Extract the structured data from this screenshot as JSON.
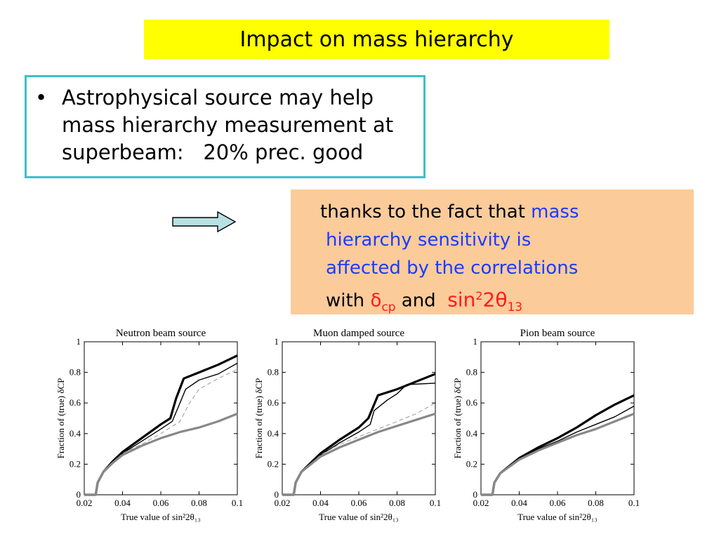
{
  "slide": {
    "title": "Impact on mass hierarchy",
    "bullet": {
      "symbol": "•",
      "line1": "Astrophysical source may help",
      "line2": "mass hierarchy measurement at",
      "line3": "superbeam:   20% prec. good"
    },
    "arrow_icon": "right-arrow-icon",
    "note": {
      "line1_plain": "thanks to the fact that ",
      "line1_highlight": "mass",
      "line2": "hierarchy sensitivity is",
      "line3": "affected by the correlations",
      "line4_with": "with ",
      "delta_symbol": "δ",
      "delta_sub": "cp",
      "and": " and  ",
      "sin_text": "sin",
      "sin_sup": "2",
      "two_theta": "2θ",
      "theta_sub": "13"
    },
    "colors": {
      "title_bg": "#ffff00",
      "box_border": "#3cc0c8",
      "note_bg": "#fccb9a",
      "highlight": "#1a3cff",
      "red": "#ff1a1a"
    }
  },
  "chart_data": [
    {
      "type": "line",
      "title": "Neutron beam source",
      "xlabel": "True value of sin²2θ₁₃",
      "ylabel": "Fraction of (true) δCP",
      "xlim": [
        0.02,
        0.1
      ],
      "ylim": [
        0,
        1
      ],
      "xticks": [
        "0.02",
        "0.04",
        "0.06",
        "0.08",
        "0.1"
      ],
      "yticks": [
        "0",
        "0.2",
        "0.4",
        "0.6",
        "0.8",
        "1"
      ],
      "series": [
        {
          "style": "thick-black",
          "x": [
            0.02,
            0.026,
            0.027,
            0.03,
            0.035,
            0.04,
            0.05,
            0.06,
            0.065,
            0.068,
            0.072,
            0.08,
            0.09,
            0.1
          ],
          "y": [
            0,
            0,
            0.08,
            0.15,
            0.22,
            0.28,
            0.37,
            0.46,
            0.5,
            0.63,
            0.76,
            0.8,
            0.85,
            0.91
          ]
        },
        {
          "style": "thin-black",
          "x": [
            0.02,
            0.026,
            0.027,
            0.03,
            0.035,
            0.04,
            0.05,
            0.06,
            0.066,
            0.07,
            0.073,
            0.08,
            0.09,
            0.1
          ],
          "y": [
            0,
            0,
            0.08,
            0.15,
            0.22,
            0.27,
            0.35,
            0.43,
            0.48,
            0.6,
            0.69,
            0.75,
            0.79,
            0.86
          ]
        },
        {
          "style": "dashed-gray",
          "x": [
            0.02,
            0.026,
            0.027,
            0.03,
            0.04,
            0.05,
            0.06,
            0.07,
            0.075,
            0.08,
            0.09,
            0.1
          ],
          "y": [
            0,
            0,
            0.08,
            0.15,
            0.27,
            0.33,
            0.4,
            0.48,
            0.6,
            0.69,
            0.76,
            0.82
          ]
        },
        {
          "style": "thick-gray",
          "x": [
            0.02,
            0.026,
            0.027,
            0.03,
            0.035,
            0.04,
            0.05,
            0.06,
            0.07,
            0.08,
            0.09,
            0.1
          ],
          "y": [
            0,
            0,
            0.08,
            0.15,
            0.21,
            0.26,
            0.32,
            0.37,
            0.41,
            0.44,
            0.48,
            0.53
          ]
        }
      ]
    },
    {
      "type": "line",
      "title": "Muon damped source",
      "xlabel": "True value of sin²2θ₁₃",
      "ylabel": "Fraction of (true) δCP",
      "xlim": [
        0.02,
        0.1
      ],
      "ylim": [
        0,
        1
      ],
      "xticks": [
        "0.02",
        "0.04",
        "0.06",
        "0.08",
        "0.1"
      ],
      "yticks": [
        "0",
        "0.2",
        "0.4",
        "0.6",
        "0.8",
        "1"
      ],
      "series": [
        {
          "style": "thick-black",
          "x": [
            0.02,
            0.026,
            0.027,
            0.03,
            0.04,
            0.05,
            0.06,
            0.065,
            0.07,
            0.08,
            0.09,
            0.1
          ],
          "y": [
            0,
            0,
            0.08,
            0.15,
            0.27,
            0.36,
            0.44,
            0.5,
            0.65,
            0.69,
            0.74,
            0.79
          ]
        },
        {
          "style": "thin-black",
          "x": [
            0.02,
            0.026,
            0.027,
            0.03,
            0.04,
            0.05,
            0.06,
            0.066,
            0.068,
            0.075,
            0.08,
            0.085,
            0.1
          ],
          "y": [
            0,
            0,
            0.08,
            0.15,
            0.26,
            0.34,
            0.41,
            0.46,
            0.55,
            0.62,
            0.66,
            0.72,
            0.73
          ]
        },
        {
          "style": "dashed-gray",
          "x": [
            0.02,
            0.026,
            0.027,
            0.03,
            0.04,
            0.05,
            0.06,
            0.07,
            0.08,
            0.09,
            0.1
          ],
          "y": [
            0,
            0,
            0.08,
            0.15,
            0.26,
            0.33,
            0.38,
            0.43,
            0.48,
            0.53,
            0.6
          ]
        },
        {
          "style": "thick-gray",
          "x": [
            0.02,
            0.026,
            0.027,
            0.03,
            0.04,
            0.05,
            0.06,
            0.07,
            0.08,
            0.09,
            0.1
          ],
          "y": [
            0,
            0,
            0.08,
            0.15,
            0.25,
            0.31,
            0.36,
            0.41,
            0.45,
            0.49,
            0.53
          ]
        }
      ]
    },
    {
      "type": "line",
      "title": "Pion beam source",
      "xlabel": "True value of sin²2θ₁₃",
      "ylabel": "Fraction of (true) δCP",
      "xlim": [
        0.02,
        0.1
      ],
      "ylim": [
        0,
        1
      ],
      "xticks": [
        "0.02",
        "0.04",
        "0.06",
        "0.08",
        "0.1"
      ],
      "yticks": [
        "0",
        "0.2",
        "0.4",
        "0.6",
        "0.8",
        "1"
      ],
      "series": [
        {
          "style": "thick-black",
          "x": [
            0.02,
            0.026,
            0.027,
            0.03,
            0.04,
            0.05,
            0.06,
            0.07,
            0.08,
            0.09,
            0.1
          ],
          "y": [
            0,
            0,
            0.08,
            0.14,
            0.24,
            0.31,
            0.37,
            0.44,
            0.52,
            0.59,
            0.65
          ]
        },
        {
          "style": "thin-black",
          "x": [
            0.02,
            0.026,
            0.027,
            0.03,
            0.04,
            0.05,
            0.06,
            0.07,
            0.08,
            0.09,
            0.1
          ],
          "y": [
            0,
            0,
            0.08,
            0.14,
            0.24,
            0.3,
            0.35,
            0.41,
            0.46,
            0.51,
            0.58
          ]
        },
        {
          "style": "thick-gray",
          "x": [
            0.02,
            0.026,
            0.027,
            0.03,
            0.04,
            0.05,
            0.06,
            0.07,
            0.08,
            0.09,
            0.1
          ],
          "y": [
            0,
            0,
            0.08,
            0.14,
            0.23,
            0.29,
            0.34,
            0.39,
            0.43,
            0.48,
            0.53
          ]
        }
      ]
    }
  ]
}
